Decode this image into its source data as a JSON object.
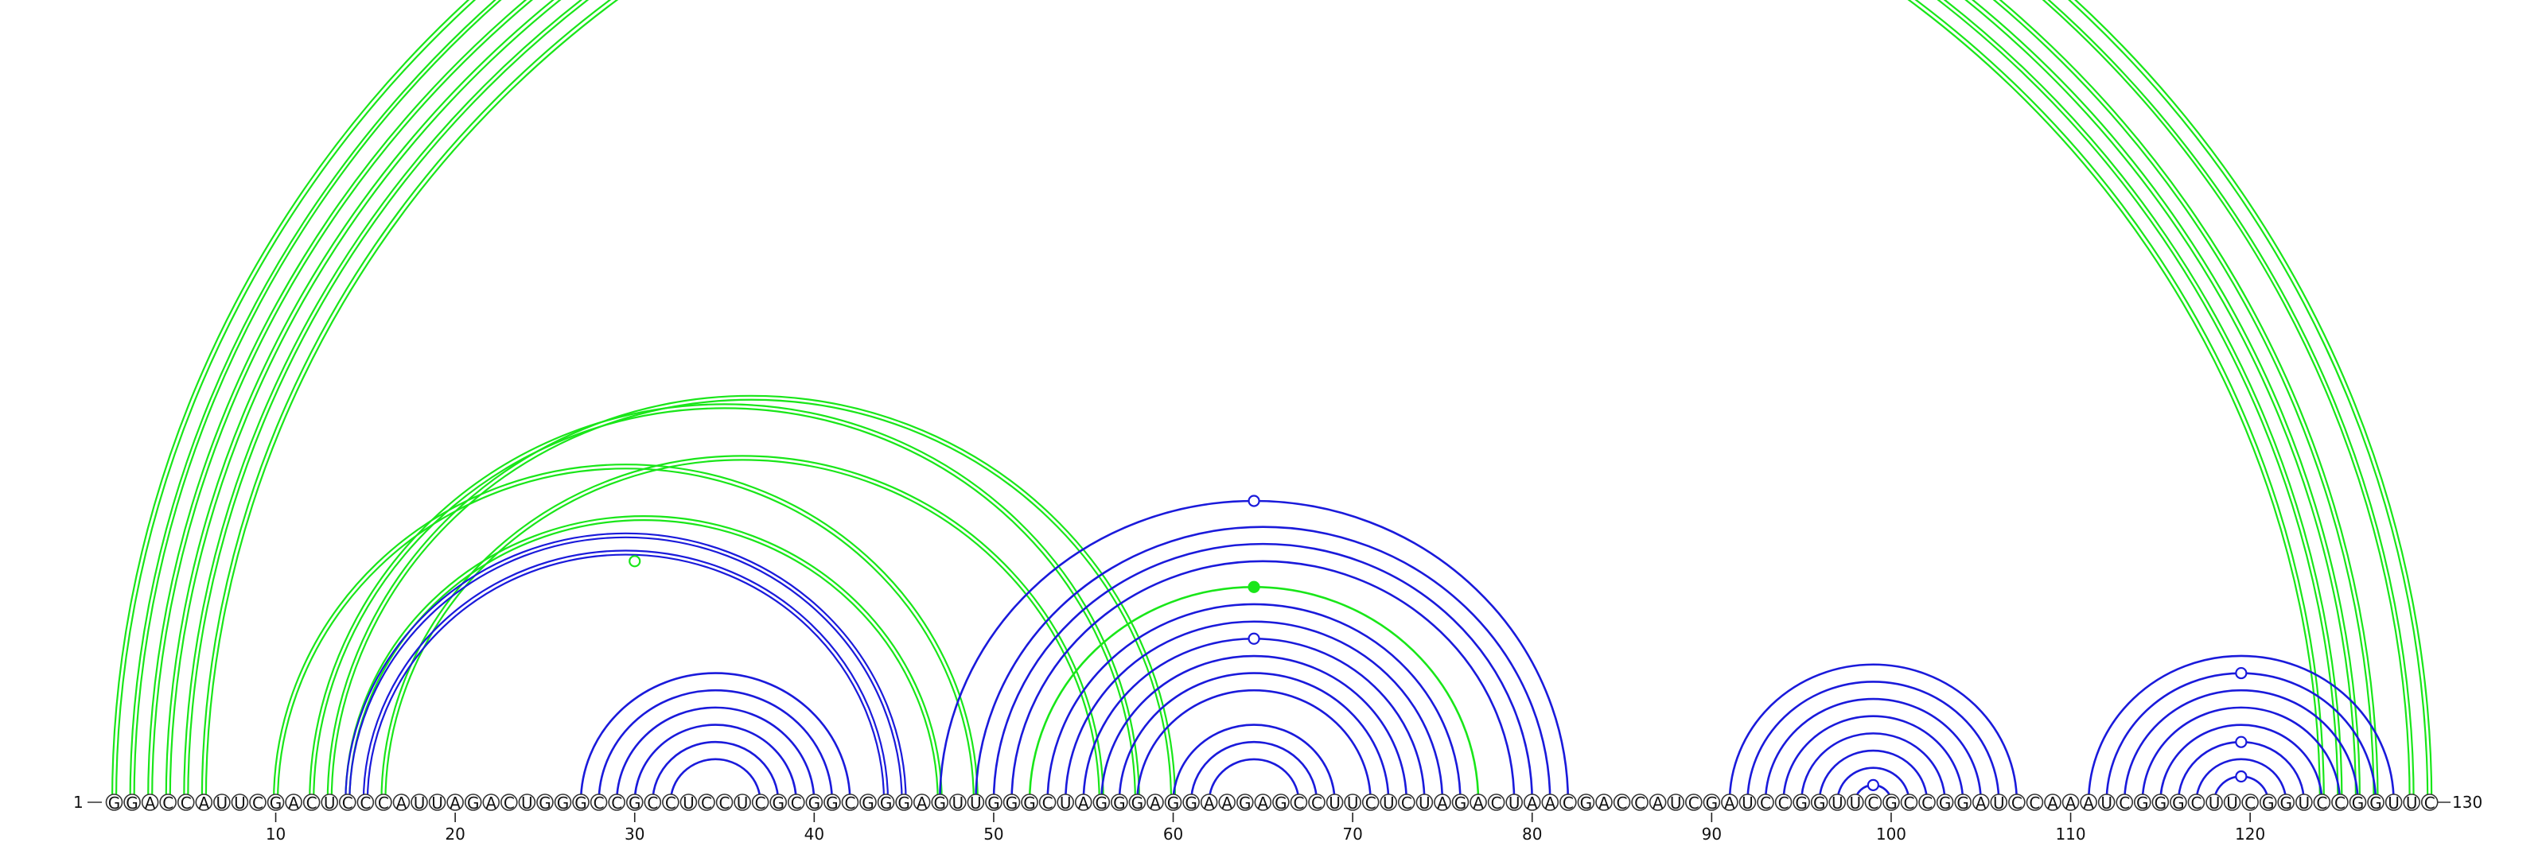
{
  "diagram": {
    "sequence": "GGACCAUUCGACUCCCAUUAGACUGGGCCGCCUCCUCGCGGCGGGAGUUGGGCUAGGGAGGAAGAGCCUUCUCUAGACUAACGACCAUCGAUCCGGUUCGCCGGAUCCAAAUCGGGCUUCGGUCCGGUUC",
    "start_label": "1",
    "end_label": "130",
    "tick_labels": [
      "10",
      "20",
      "30",
      "40",
      "50",
      "60",
      "70",
      "80",
      "90",
      "100",
      "110",
      "120"
    ],
    "colors": {
      "green": "#19e619",
      "blue": "#1a1adb"
    },
    "arcs": [
      {
        "i": 1,
        "j": 130,
        "color": "green",
        "style": "double"
      },
      {
        "i": 2,
        "j": 129,
        "color": "green",
        "style": "double"
      },
      {
        "i": 3,
        "j": 127,
        "color": "green",
        "style": "double"
      },
      {
        "i": 4,
        "j": 126,
        "color": "green",
        "style": "double"
      },
      {
        "i": 5,
        "j": 125,
        "color": "green",
        "style": "double"
      },
      {
        "i": 6,
        "j": 124,
        "color": "green",
        "style": "double"
      },
      {
        "i": 10,
        "j": 49,
        "color": "green",
        "style": "double"
      },
      {
        "i": 12,
        "j": 58,
        "color": "green",
        "style": "double"
      },
      {
        "i": 13,
        "j": 60,
        "color": "green",
        "style": "double"
      },
      {
        "i": 14,
        "j": 47,
        "color": "green",
        "style": "double"
      },
      {
        "i": 16,
        "j": 56,
        "color": "green",
        "style": "double"
      },
      {
        "i": 14,
        "j": 45,
        "color": "blue",
        "style": "double"
      },
      {
        "i": 15,
        "j": 44,
        "color": "blue",
        "style": "double"
      },
      {
        "i": 27,
        "j": 42,
        "color": "blue",
        "style": "single"
      },
      {
        "i": 28,
        "j": 41,
        "color": "blue",
        "style": "single"
      },
      {
        "i": 29,
        "j": 40,
        "color": "blue",
        "style": "single"
      },
      {
        "i": 30,
        "j": 39,
        "color": "blue",
        "style": "single"
      },
      {
        "i": 31,
        "j": 38,
        "color": "blue",
        "style": "single"
      },
      {
        "i": 32,
        "j": 37,
        "color": "blue",
        "style": "single"
      },
      {
        "i": 47,
        "j": 82,
        "color": "blue",
        "style": "single"
      },
      {
        "i": 49,
        "j": 81,
        "color": "blue",
        "style": "single"
      },
      {
        "i": 50,
        "j": 80,
        "color": "blue",
        "style": "single"
      },
      {
        "i": 51,
        "j": 79,
        "color": "blue",
        "style": "single"
      },
      {
        "i": 52,
        "j": 77,
        "color": "green",
        "style": "single"
      },
      {
        "i": 53,
        "j": 76,
        "color": "blue",
        "style": "single"
      },
      {
        "i": 54,
        "j": 75,
        "color": "blue",
        "style": "single"
      },
      {
        "i": 55,
        "j": 74,
        "color": "blue",
        "style": "single"
      },
      {
        "i": 56,
        "j": 73,
        "color": "blue",
        "style": "single"
      },
      {
        "i": 57,
        "j": 72,
        "color": "blue",
        "style": "single"
      },
      {
        "i": 58,
        "j": 71,
        "color": "blue",
        "style": "single"
      },
      {
        "i": 60,
        "j": 69,
        "color": "blue",
        "style": "single"
      },
      {
        "i": 61,
        "j": 68,
        "color": "blue",
        "style": "single"
      },
      {
        "i": 62,
        "j": 67,
        "color": "blue",
        "style": "single"
      },
      {
        "i": 91,
        "j": 107,
        "color": "blue",
        "style": "single"
      },
      {
        "i": 92,
        "j": 106,
        "color": "blue",
        "style": "single"
      },
      {
        "i": 93,
        "j": 105,
        "color": "blue",
        "style": "single"
      },
      {
        "i": 94,
        "j": 104,
        "color": "blue",
        "style": "single"
      },
      {
        "i": 95,
        "j": 103,
        "color": "blue",
        "style": "single"
      },
      {
        "i": 96,
        "j": 102,
        "color": "blue",
        "style": "single"
      },
      {
        "i": 97,
        "j": 101,
        "color": "blue",
        "style": "single"
      },
      {
        "i": 98,
        "j": 100,
        "color": "blue",
        "style": "single"
      },
      {
        "i": 111,
        "j": 128,
        "color": "blue",
        "style": "single"
      },
      {
        "i": 112,
        "j": 127,
        "color": "blue",
        "style": "single"
      },
      {
        "i": 113,
        "j": 126,
        "color": "blue",
        "style": "single"
      },
      {
        "i": 114,
        "j": 125,
        "color": "blue",
        "style": "single"
      },
      {
        "i": 115,
        "j": 124,
        "color": "blue",
        "style": "single"
      },
      {
        "i": 116,
        "j": 123,
        "color": "blue",
        "style": "single"
      },
      {
        "i": 117,
        "j": 122,
        "color": "blue",
        "style": "single"
      },
      {
        "i": 118,
        "j": 121,
        "color": "blue",
        "style": "single"
      }
    ],
    "markers": [
      {
        "i": 1,
        "j": 130,
        "color": "green",
        "filled": false
      },
      {
        "i": 16,
        "j": 44,
        "color": "green",
        "filled": false
      },
      {
        "i": 47,
        "j": 82,
        "color": "blue",
        "filled": false
      },
      {
        "i": 52,
        "j": 77,
        "color": "green",
        "filled": true
      },
      {
        "i": 55,
        "j": 74,
        "color": "blue",
        "filled": false
      },
      {
        "i": 98,
        "j": 100,
        "color": "blue",
        "filled": false
      },
      {
        "i": 112,
        "j": 127,
        "color": "blue",
        "filled": false
      },
      {
        "i": 116,
        "j": 123,
        "color": "blue",
        "filled": false
      },
      {
        "i": 118,
        "j": 121,
        "color": "blue",
        "filled": false
      }
    ]
  }
}
